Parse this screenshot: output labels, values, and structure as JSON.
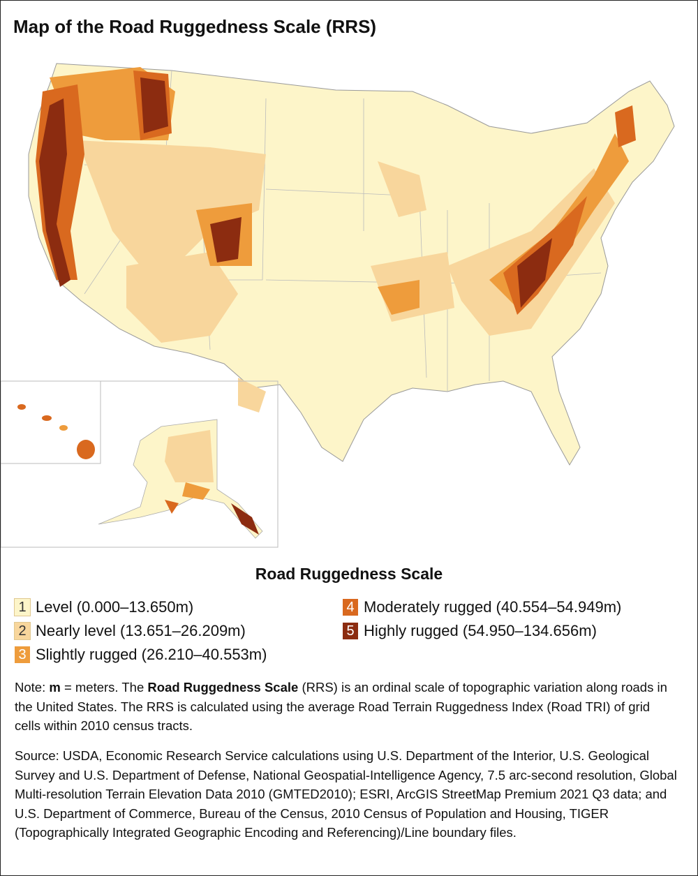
{
  "title": "Map of the Road Ruggedness Scale (RRS)",
  "legend": {
    "title": "Road Ruggedness Scale",
    "items": [
      {
        "number": "1",
        "label": "Level (0.000–13.650m)",
        "color": "#fdf5c9"
      },
      {
        "number": "2",
        "label": "Nearly level (13.651–26.209m)",
        "color": "#f8d69c"
      },
      {
        "number": "3",
        "label": "Slightly rugged (26.210–40.553m)",
        "color": "#ee9c3c"
      },
      {
        "number": "4",
        "label": "Moderately rugged (40.554–54.949m)",
        "color": "#d9691f"
      },
      {
        "number": "5",
        "label": "Highly rugged (54.950–134.656m)",
        "color": "#8c2c10"
      }
    ]
  },
  "note": [
    "Note: ",
    "m",
    " = meters. The ",
    "Road Ruggedness Scale",
    " (RRS) is an ordinal scale of topographic variation along roads in the United States. The RRS is calculated using the average Road Terrain Ruggedness Index (Road TRI) of grid cells within 2010 census tracts."
  ],
  "source": "Source: USDA, Economic Research Service calculations using U.S. Department of the Interior, U.S. Geological Survey and U.S. Department of Defense, National Geospatial-Intelligence Agency, 7.5 arc-second resolution, Global Multi-resolution Terrain Elevation Data 2010 (GMTED2010); ESRI, ArcGIS StreetMap Premium 2021 Q3 data; and U.S. Department of Commerce, Bureau of the Census, 2010 Census of Population and Housing, TIGER (Topographically Integrated Geographic Encoding and Referencing)/Line boundary files."
}
